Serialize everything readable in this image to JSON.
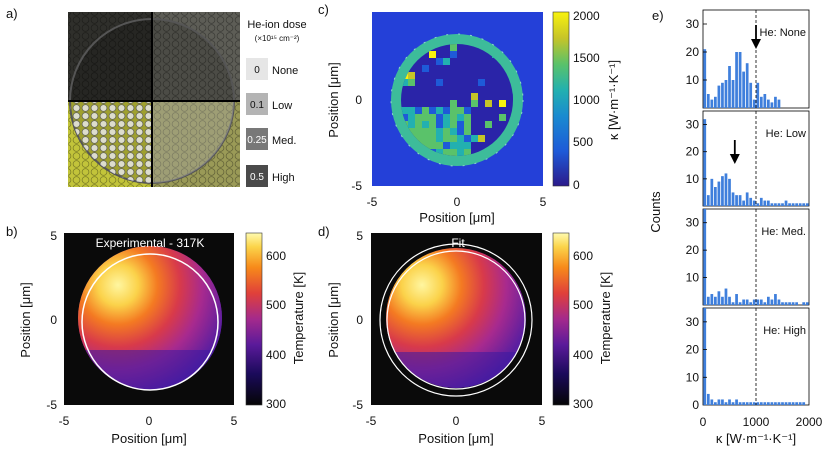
{
  "panel_labels": {
    "a": "a)",
    "b": "b)",
    "c": "c)",
    "d": "d)",
    "e": "e)"
  },
  "panel_a": {
    "legend_title": "He-ion dose",
    "legend_units": "(×10¹⁵ cm⁻²)",
    "doses": [
      {
        "value": "0",
        "label": "None",
        "color": "#e6e6e6"
      },
      {
        "value": "0.1",
        "label": "Low",
        "color": "#b4b4b4"
      },
      {
        "value": "0.25",
        "label": "Med.",
        "color": "#787878"
      },
      {
        "value": "0.5",
        "label": "High",
        "color": "#4a4a4a"
      }
    ],
    "quadrant_colors": {
      "top_left": "#2f2f2b",
      "top_right": "#5d5d56",
      "bottom_left": "#c2c43a",
      "bottom_right": "#9a9a57"
    }
  },
  "chart_data": [
    {
      "panel": "b",
      "type": "heatmap",
      "title": "Experimental - 317K",
      "xlabel": "Position [μm]",
      "ylabel": "Position [μm]",
      "xlim": [
        -5,
        5
      ],
      "ylim": [
        -5,
        5
      ],
      "xticks": [
        "-5",
        "0",
        "5"
      ],
      "yticks": [
        "5",
        "0",
        "-5"
      ],
      "colorbar_label": "Temperature [K]",
      "colorbar_ticks": [
        "600",
        "500",
        "400",
        "300"
      ],
      "colorbar_range": [
        300,
        650
      ]
    },
    {
      "panel": "c",
      "type": "heatmap",
      "xlabel": "Position [μm]",
      "ylabel": "Position [μm]",
      "xlim": [
        -5,
        5
      ],
      "ylim": [
        -5,
        5
      ],
      "xticks": [
        "-5",
        "0",
        "5"
      ],
      "yticks": [
        "0",
        "-5"
      ],
      "colorbar_label": "κ  [W·m⁻¹·K⁻¹]",
      "colorbar_ticks": [
        "2000",
        "1500",
        "1000",
        "500",
        "0"
      ],
      "colorbar_range": [
        0,
        2000
      ]
    },
    {
      "panel": "d",
      "type": "heatmap",
      "title": "Fit",
      "xlabel": "Position [μm]",
      "ylabel": "Position [μm]",
      "xlim": [
        -5,
        5
      ],
      "ylim": [
        -5,
        5
      ],
      "xticks": [
        "-5",
        "0",
        "5"
      ],
      "yticks": [
        "5",
        "0",
        "-5"
      ],
      "colorbar_label": "Temperature [K]",
      "colorbar_ticks": [
        "600",
        "500",
        "400",
        "300"
      ],
      "colorbar_range": [
        300,
        650
      ]
    },
    {
      "panel": "e",
      "type": "bar",
      "xlabel": "κ  [W·m⁻¹·K⁻¹]",
      "ylabel": "Counts",
      "xlim": [
        0,
        2000
      ],
      "xticks": [
        "0",
        "1000",
        "2000"
      ],
      "ylim": [
        0,
        35
      ],
      "yticks": [
        "30",
        "20",
        "10",
        "0"
      ],
      "bin_width": 66.67,
      "reference_line_x": 1000,
      "bar_color": "#3f7fdc",
      "series": [
        {
          "name": "He: None",
          "arrow_x": 1000,
          "values": [
            21,
            5,
            3,
            4,
            8,
            9,
            10,
            15,
            10,
            20,
            20,
            13,
            16,
            9,
            3,
            9,
            4,
            5,
            3,
            2,
            4,
            3,
            0,
            0,
            0,
            0,
            0,
            0,
            0,
            0
          ]
        },
        {
          "name": "He: Low",
          "arrow_x": 600,
          "values": [
            32,
            4,
            10,
            7,
            9,
            11,
            12,
            10,
            5,
            4,
            4,
            2,
            5,
            3,
            2,
            1,
            3,
            2,
            2,
            1,
            1,
            1,
            1,
            2,
            1,
            1,
            1,
            1,
            1,
            1
          ]
        },
        {
          "name": "He: Med.",
          "arrow_x": null,
          "values": [
            35,
            3,
            4,
            3,
            5,
            3,
            6,
            3,
            1,
            4,
            1,
            2,
            2,
            1,
            2,
            2,
            2,
            1,
            3,
            2,
            4,
            2,
            1,
            1,
            1,
            1,
            1,
            0,
            1,
            1
          ]
        },
        {
          "name": "He: High",
          "arrow_x": null,
          "values": [
            35,
            4,
            2,
            1,
            2,
            2,
            1,
            2,
            1,
            2,
            1,
            1,
            1,
            1,
            1,
            1,
            1,
            1,
            1,
            1,
            1,
            1,
            1,
            1,
            1,
            1,
            1,
            1,
            1,
            0
          ]
        }
      ]
    }
  ]
}
